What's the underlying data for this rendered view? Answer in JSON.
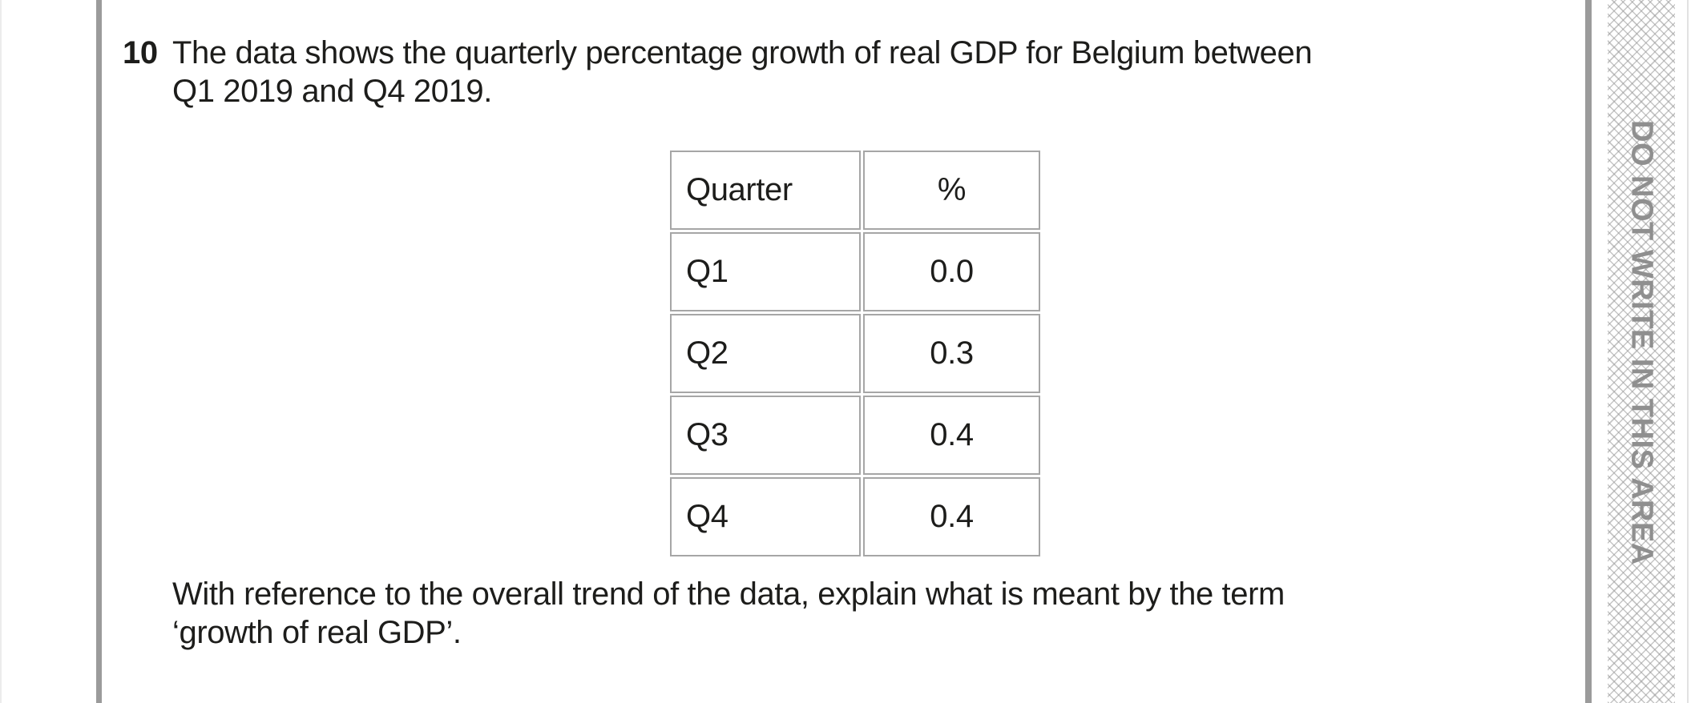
{
  "question": {
    "number": "10",
    "line1": "The data shows the quarterly percentage growth of real GDP for Belgium between",
    "line2": "Q1 2019 and Q4 2019."
  },
  "table": {
    "headers": [
      "Quarter",
      "%"
    ],
    "rows": [
      [
        "Q1",
        "0.0"
      ],
      [
        "Q2",
        "0.3"
      ],
      [
        "Q3",
        "0.4"
      ],
      [
        "Q4",
        "0.4"
      ]
    ]
  },
  "prompt": {
    "line1": "With reference to the overall trend of the data, explain what is meant by the term",
    "line2": "‘growth of real GDP’."
  },
  "margin": {
    "warning_text": "DO NOT WRITE IN THIS AREA"
  },
  "colors": {
    "rule_bar": "#9b9b9b",
    "table_border": "#a6a6a6",
    "body_text": "#1d1d1b",
    "warning_text": "#8f8f8f",
    "hatch_line": "#c0c0c0"
  }
}
